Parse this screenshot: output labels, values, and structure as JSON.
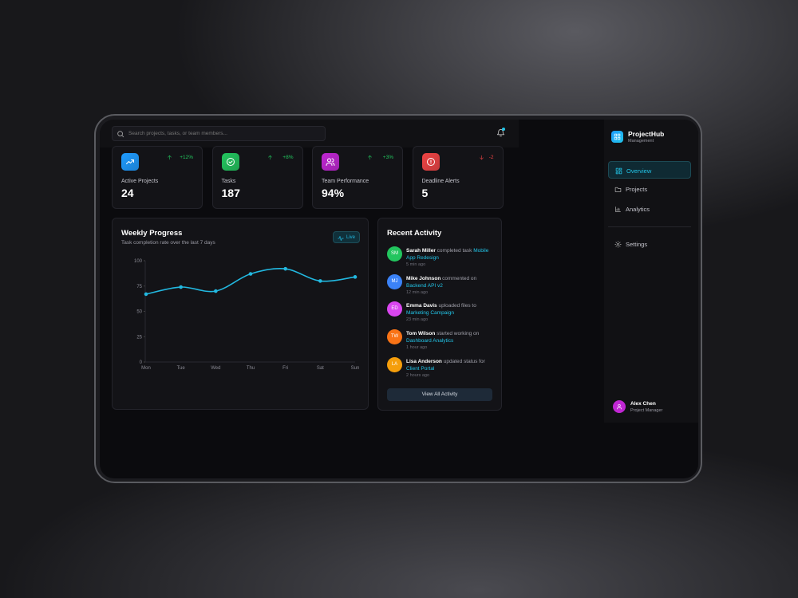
{
  "search": {
    "placeholder": "Search projects, tasks, or team members..."
  },
  "stats": [
    {
      "label": "Active Projects",
      "value": 24,
      "change": "+12%",
      "trend": "up",
      "color": "#1e9bff"
    },
    {
      "label": "Tasks",
      "value": 187,
      "change": "+8%",
      "trend": "up",
      "color": "#22c55e"
    },
    {
      "label": "Team Performance",
      "value": "94%",
      "change": "+3%",
      "trend": "up",
      "color": "#c026d3"
    },
    {
      "label": "Deadline Alerts",
      "value": 5,
      "change": "-2",
      "trend": "down",
      "color": "#ef4444"
    }
  ],
  "chart_data": {
    "type": "line",
    "title": "Weekly Progress",
    "subtitle": "Task completion rate over the last 7 days",
    "badge": "Live",
    "categories": [
      "Mon",
      "Tue",
      "Wed",
      "Thu",
      "Fri",
      "Sat",
      "Sun"
    ],
    "values": [
      67,
      74,
      70,
      87,
      92,
      80,
      84
    ],
    "ylim": [
      0,
      100
    ],
    "yticks": [
      0,
      25,
      50,
      75,
      100
    ],
    "grid": false,
    "color": "#22b8e0"
  },
  "activity": {
    "title": "Recent Activity",
    "items": [
      {
        "initials": "SM",
        "name": "Sarah Miller",
        "action": "completed task",
        "target": "Mobile App Redesign",
        "time": "5 min ago",
        "color": "#22c55e"
      },
      {
        "initials": "MJ",
        "name": "Mike Johnson",
        "action": "commented on",
        "target": "Backend API v2",
        "time": "12 min ago",
        "color": "#3b82f6"
      },
      {
        "initials": "ED",
        "name": "Emma Davis",
        "action": "uploaded files to",
        "target": "Marketing Campaign",
        "time": "23 min ago",
        "color": "#d946ef"
      },
      {
        "initials": "TW",
        "name": "Tom Wilson",
        "action": "started working on",
        "target": "Dashboard Analytics",
        "time": "1 hour ago",
        "color": "#f97316"
      },
      {
        "initials": "LA",
        "name": "Lisa Anderson",
        "action": "updated status for",
        "target": "Client Portal",
        "time": "2 hours ago",
        "color": "#f59e0b"
      }
    ],
    "button": "View All Activity"
  },
  "sidebar": {
    "brand": "ProjectHub",
    "tagline": "Management",
    "nav": [
      "Overview",
      "Projects",
      "Analytics"
    ],
    "settings": "Settings"
  },
  "user": {
    "name": "Alex Chen",
    "role": "Project Manager",
    "color": "#c026d3"
  }
}
